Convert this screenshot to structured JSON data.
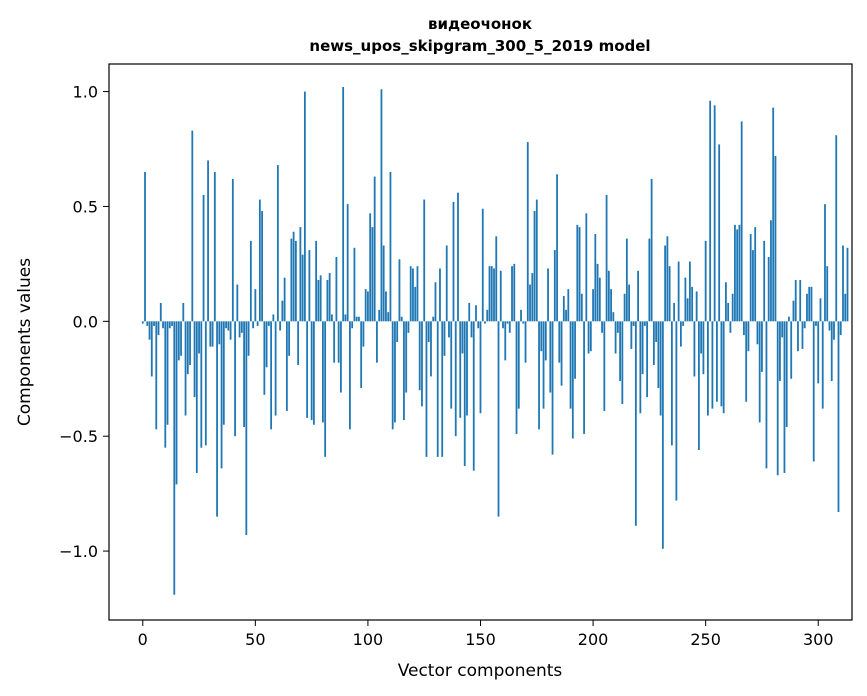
{
  "chart_data": {
    "type": "bar",
    "title": "видеочонок",
    "subtitle": "news_upos_skipgram_300_5_2019 model",
    "xlabel": "Vector components",
    "ylabel": "Components values",
    "xlim": [
      -15,
      315
    ],
    "ylim": [
      -1.3,
      1.12
    ],
    "x_ticks": [
      0,
      50,
      100,
      150,
      200,
      250,
      300
    ],
    "x_tick_labels": [
      "0",
      "50",
      "100",
      "150",
      "200",
      "250",
      "300"
    ],
    "y_ticks": [
      -1.0,
      -0.5,
      0.0,
      0.5,
      1.0
    ],
    "y_tick_labels": [
      "−1.0",
      "−0.5",
      "0.0",
      "0.5",
      "1.0"
    ],
    "bar_color": "#1f77b4",
    "values": [
      -0.01,
      0.65,
      -0.02,
      -0.08,
      -0.24,
      -0.02,
      -0.47,
      -0.06,
      0.08,
      -0.03,
      -0.55,
      -0.45,
      -0.03,
      -0.02,
      -1.19,
      -0.71,
      -0.17,
      -0.15,
      0.08,
      -0.41,
      -0.23,
      -0.19,
      0.83,
      -0.33,
      -0.66,
      -0.14,
      -0.55,
      0.55,
      -0.54,
      0.7,
      -0.11,
      -0.11,
      0.65,
      -0.85,
      -0.1,
      -0.64,
      -0.45,
      -0.03,
      -0.04,
      -0.08,
      0.62,
      -0.5,
      0.16,
      -0.07,
      -0.05,
      -0.46,
      -0.93,
      -0.15,
      0.35,
      -0.03,
      0.14,
      -0.02,
      0.53,
      0.48,
      -0.32,
      -0.2,
      -0.02,
      -0.47,
      0.03,
      -0.41,
      0.68,
      -0.04,
      0.09,
      0.19,
      -0.39,
      -0.15,
      0.36,
      0.39,
      0.35,
      -0.19,
      0.41,
      0.29,
      1.0,
      -0.42,
      0.31,
      -0.43,
      -0.45,
      0.35,
      0.18,
      0.2,
      -0.44,
      -0.59,
      0.18,
      0.21,
      0.03,
      -0.18,
      0.28,
      -0.18,
      -0.31,
      1.02,
      0.03,
      0.51,
      -0.47,
      -0.03,
      0.32,
      0.02,
      0.02,
      -0.29,
      -0.11,
      0.14,
      0.13,
      0.47,
      0.41,
      0.63,
      -0.18,
      0.05,
      1.01,
      0.33,
      0.13,
      0.04,
      0.65,
      -0.47,
      -0.44,
      -0.09,
      0.27,
      0.02,
      -0.43,
      -0.31,
      -0.05,
      0.24,
      0.23,
      0.15,
      0.24,
      -0.3,
      -0.37,
      0.53,
      -0.59,
      -0.09,
      -0.24,
      0.02,
      0.17,
      -0.59,
      0.23,
      -0.59,
      -0.15,
      0.33,
      -0.07,
      -0.38,
      0.52,
      -0.5,
      0.56,
      -0.42,
      -0.14,
      -0.63,
      -0.41,
      0.08,
      -0.07,
      -0.65,
      0.07,
      -0.03,
      -0.4,
      0.49,
      -0.01,
      0.05,
      0.24,
      0.24,
      0.23,
      0.37,
      -0.85,
      0.22,
      -0.03,
      -0.17,
      -0.01,
      -0.05,
      0.24,
      0.25,
      -0.49,
      -0.38,
      0.05,
      -0.01,
      -0.18,
      0.78,
      0.16,
      0.21,
      0.48,
      0.53,
      -0.47,
      -0.13,
      -0.38,
      -0.17,
      0.23,
      -0.31,
      -0.58,
      0.31,
      0.64,
      -0.18,
      -0.28,
      0.11,
      0.05,
      0.14,
      -0.38,
      -0.51,
      -0.25,
      0.42,
      0.41,
      0.12,
      -0.49,
      0.47,
      -0.14,
      -0.13,
      0.14,
      0.38,
      0.25,
      0.19,
      -0.05,
      -0.39,
      0.55,
      0.22,
      0.14,
      0.04,
      -0.14,
      -0.05,
      -0.26,
      -0.36,
      0.12,
      0.36,
      0.16,
      -0.12,
      -0.02,
      -0.89,
      0.22,
      -0.4,
      -0.23,
      -0.02,
      -0.33,
      0.36,
      0.62,
      -0.19,
      -0.09,
      -0.29,
      -0.41,
      -0.99,
      0.33,
      0.37,
      0.24,
      -0.54,
      0.08,
      -0.78,
      0.26,
      -0.11,
      -0.02,
      0.19,
      0.1,
      0.26,
      0.15,
      -0.24,
      0.13,
      -0.56,
      -0.14,
      -0.23,
      0.35,
      -0.41,
      0.96,
      -0.38,
      0.94,
      -0.35,
      0.77,
      -0.37,
      -0.4,
      0.17,
      0.08,
      -0.05,
      0.12,
      0.42,
      0.4,
      0.42,
      0.87,
      -0.06,
      -0.35,
      -0.13,
      0.38,
      0.31,
      0.41,
      -0.1,
      -0.44,
      -0.22,
      0.35,
      -0.64,
      0.28,
      0.44,
      0.93,
      0.72,
      -0.67,
      -0.26,
      -0.07,
      -0.66,
      -0.46,
      0.02,
      -0.25,
      0.09,
      0.18,
      -0.13,
      0.18,
      -0.12,
      -0.03,
      0.12,
      0.15,
      0.15,
      -0.61,
      -0.02,
      -0.27,
      0.1,
      -0.38,
      0.51,
      0.24,
      -0.04,
      -0.26,
      -0.08,
      0.81,
      -0.83,
      -0.06,
      0.33,
      0.12,
      0.32
    ]
  }
}
